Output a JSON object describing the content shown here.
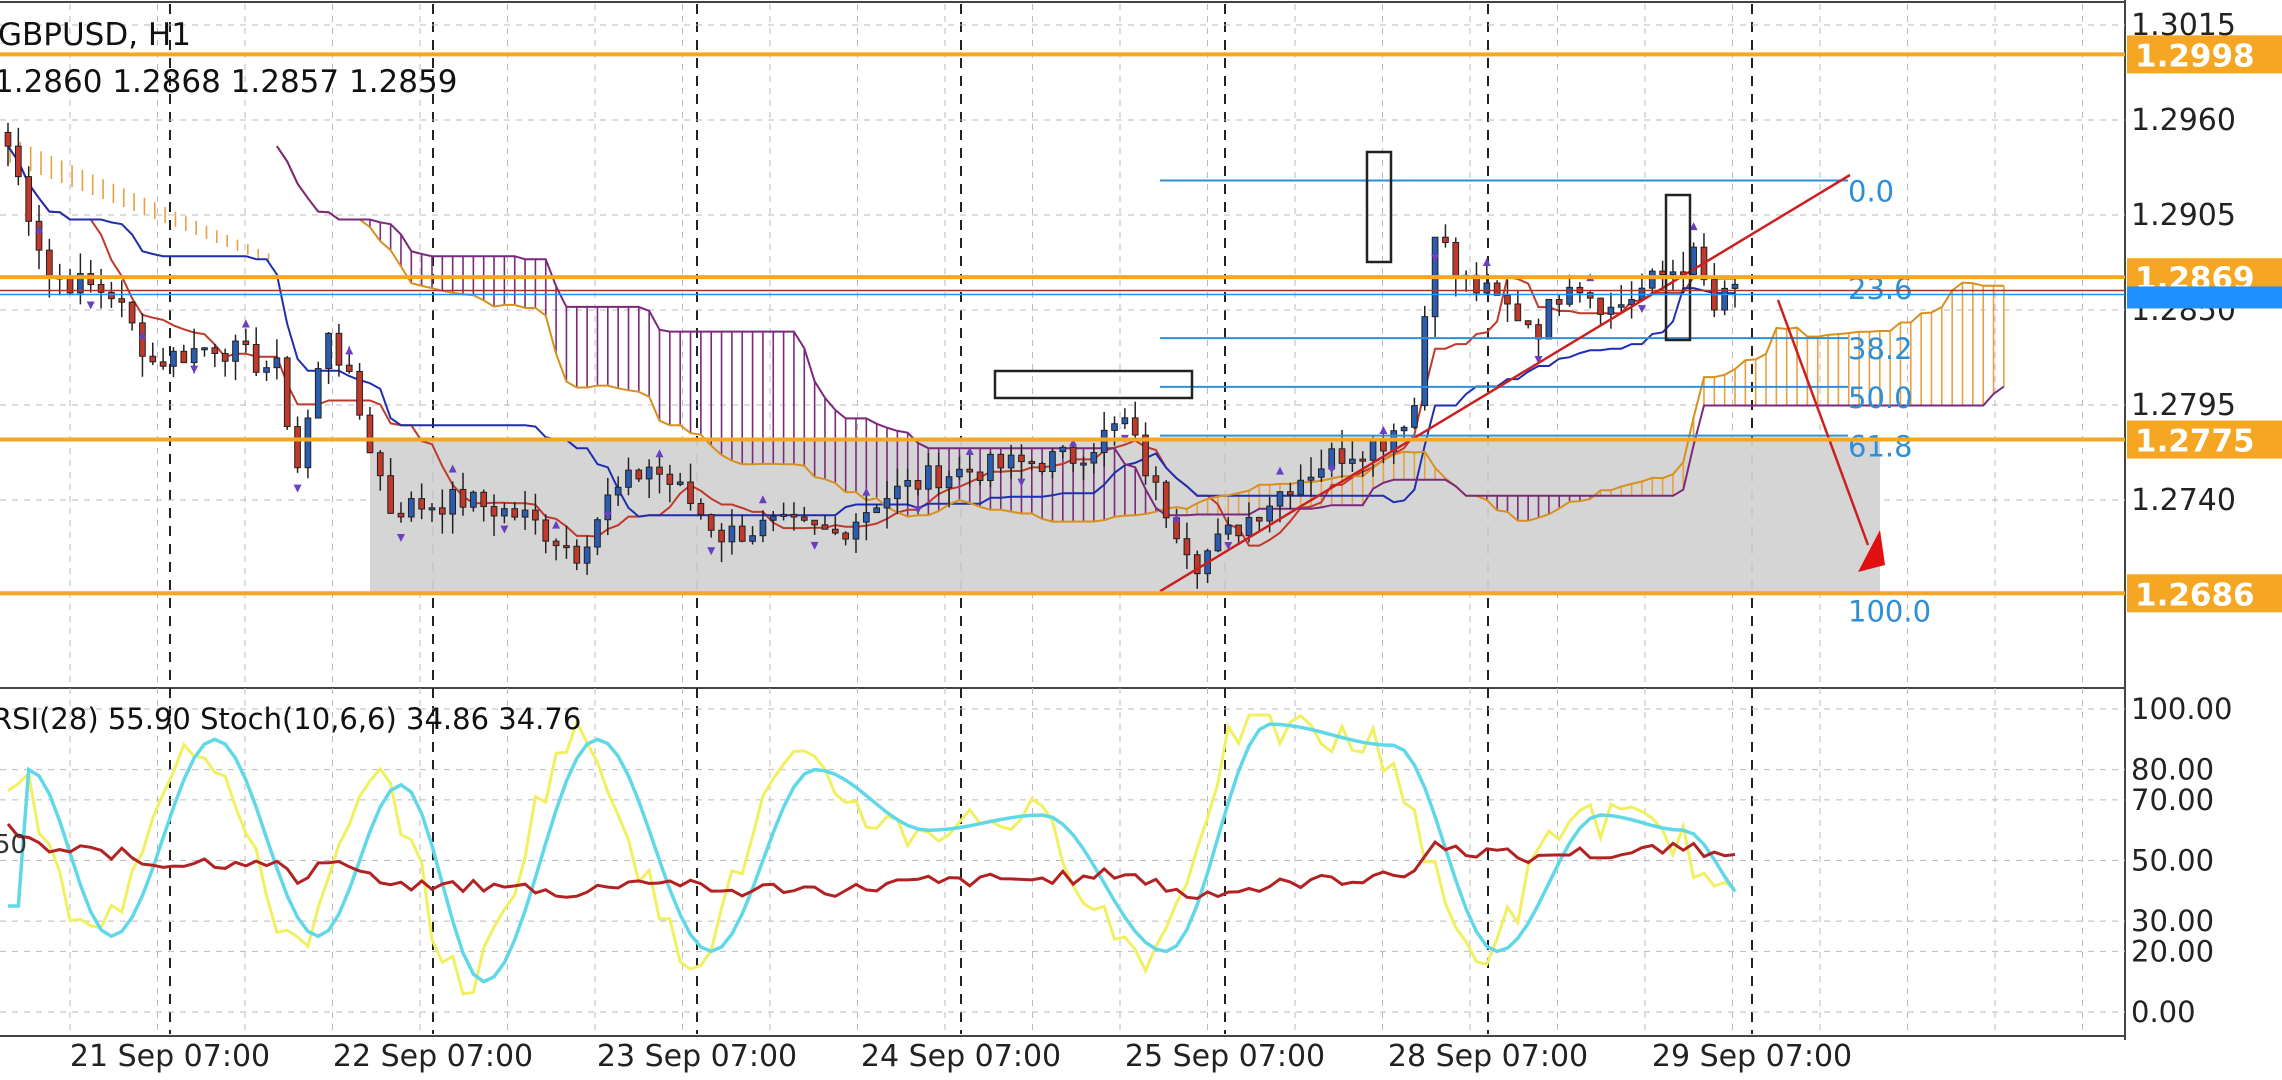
{
  "header": {
    "symbol": "GBPUSD, H1",
    "ohlc": "1.2860 1.2868 1.2857 1.2859"
  },
  "indicator_header": {
    "text": "RSI(28) 55.90 Stoch(10,6,6) 34.86 34.76",
    "left_level_label": "50"
  },
  "colors": {
    "orange_level": "#f5a623",
    "fib": "#2e8fd6",
    "bull": "#2a5db0",
    "bear": "#c0392b",
    "cloud": "#7b2a7b",
    "rsi": "#b22222",
    "stoch_main": "#f0f060",
    "stoch_signal": "#60d8e8",
    "zone": "#d3d3d3"
  },
  "chart_data": [
    {
      "type": "candlestick",
      "title": "GBPUSD, H1",
      "x_tick_labels": [
        "21 Sep 07:00",
        "22 Sep 07:00",
        "23 Sep 07:00",
        "24 Sep 07:00",
        "25 Sep 07:00",
        "28 Sep 07:00",
        "29 Sep 07:00"
      ],
      "y_tick_labels": [
        "1.3015",
        "1.2960",
        "1.2905",
        "1.2850",
        "1.2795",
        "1.2740"
      ],
      "ylim": [
        1.267,
        1.3025
      ],
      "current_price": 1.2859,
      "horizontal_levels": [
        {
          "value": 1.2998,
          "label": "1.2998"
        },
        {
          "value": 1.2869,
          "label": "1.2869"
        },
        {
          "value": 1.2775,
          "label": "1.2775"
        },
        {
          "value": 1.2686,
          "label": "1.2686"
        }
      ],
      "fibonacci": {
        "high": 1.2925,
        "low": 1.2686,
        "levels": [
          {
            "ratio": 0.0,
            "label": "0.0"
          },
          {
            "ratio": 23.6,
            "label": "23.6"
          },
          {
            "ratio": 38.2,
            "label": "38.2"
          },
          {
            "ratio": 50.0,
            "label": "50.0"
          },
          {
            "ratio": 61.8,
            "label": "61.8"
          },
          {
            "ratio": 100.0,
            "label": "100.0"
          }
        ]
      },
      "grid": true
    },
    {
      "type": "line",
      "title": "RSI(28) 55.90 Stoch(10,6,6) 34.86 34.76",
      "y_tick_labels": [
        "100.00",
        "80.00",
        "70.00",
        "50.00",
        "30.00",
        "20.00",
        "0.00"
      ],
      "ylim": [
        0,
        100
      ],
      "series": [
        {
          "name": "RSI(28)",
          "last": 55.9
        },
        {
          "name": "Stoch(10,6,6)",
          "last": 34.86
        },
        {
          "name": "Stoch signal",
          "last": 34.76
        }
      ],
      "grid": true
    }
  ]
}
